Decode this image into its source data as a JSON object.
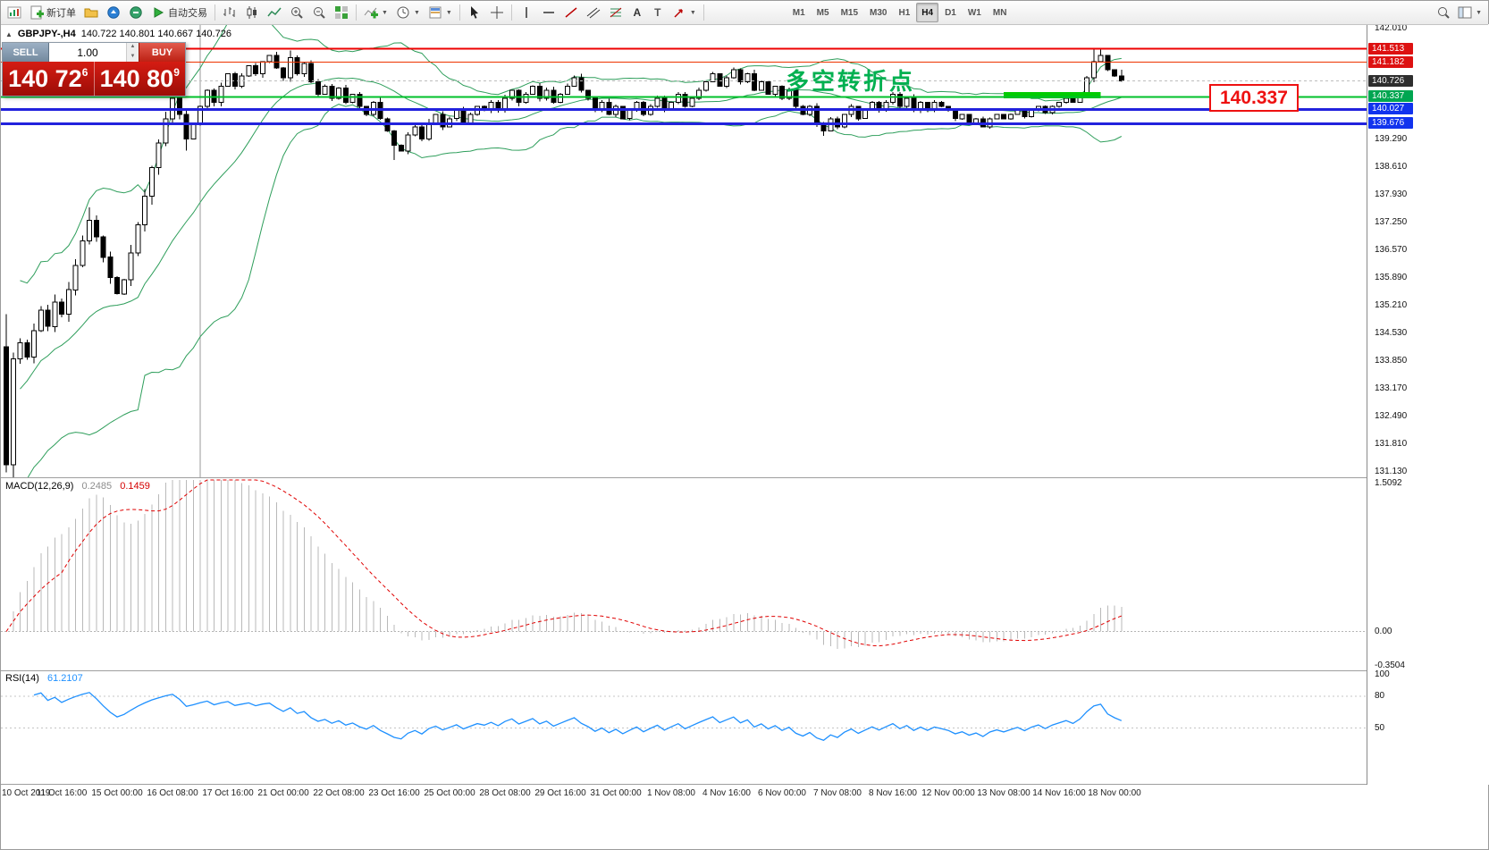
{
  "toolbar": {
    "new_order": "新订单",
    "auto_trade": "自动交易",
    "timeframes": [
      "M1",
      "M5",
      "M15",
      "M30",
      "H1",
      "H4",
      "D1",
      "W1",
      "MN"
    ],
    "active_timeframe": "H4"
  },
  "symbol_header": {
    "symbol": "GBPJPY-,H4",
    "ohlc": "140.722 140.801 140.667 140.726"
  },
  "trade_panel": {
    "sell_label": "SELL",
    "buy_label": "BUY",
    "volume": "1.00",
    "sell_price_main": "140 72",
    "sell_price_sup": "6",
    "buy_price_main": "140 80",
    "buy_price_sup": "9"
  },
  "annotations": {
    "turning_point_text": "多空转折点",
    "price_callout": "140.337"
  },
  "price_scale": {
    "ticks": [
      "142.010",
      "139.290",
      "138.610",
      "137.930",
      "137.250",
      "136.570",
      "135.890",
      "135.210",
      "134.530",
      "133.850",
      "133.170",
      "132.490",
      "131.810",
      "131.130"
    ],
    "labels": [
      {
        "text": "141.513",
        "bg": "#dd1111"
      },
      {
        "text": "141.182",
        "bg": "#dd1111"
      },
      {
        "text": "140.726",
        "bg": "#2e2e2e"
      },
      {
        "text": "140.337",
        "bg": "#00a651"
      },
      {
        "text": "140.027",
        "bg": "#1133ee"
      },
      {
        "text": "139.676",
        "bg": "#1133ee"
      }
    ]
  },
  "macd_panel": {
    "label": "MACD(12,26,9)",
    "value_main": "0.2485",
    "value_signal": "0.1459",
    "scale": [
      {
        "text": "1.5092",
        "value": 1.5092
      },
      {
        "text": "0.00",
        "value": 0
      },
      {
        "text": "-0.3504",
        "value": -0.3504
      }
    ]
  },
  "rsi_panel": {
    "label": "RSI(14)",
    "value": "61.2107",
    "scale": [
      {
        "text": "100",
        "value": 100
      },
      {
        "text": "80",
        "value": 80
      },
      {
        "text": "50",
        "value": 50
      }
    ],
    "levels": [
      80,
      50
    ]
  },
  "time_axis": [
    "10 Oct 2019",
    "11 Oct 16:00",
    "15 Oct 00:00",
    "16 Oct 08:00",
    "17 Oct 16:00",
    "21 Oct 00:00",
    "22 Oct 08:00",
    "23 Oct 16:00",
    "25 Oct 00:00",
    "28 Oct 08:00",
    "29 Oct 16:00",
    "31 Oct 00:00",
    "1 Nov 08:00",
    "4 Nov 16:00",
    "6 Nov 00:00",
    "7 Nov 08:00",
    "8 Nov 16:00",
    "12 Nov 00:00",
    "13 Nov 08:00",
    "14 Nov 16:00",
    "18 Nov 00:00"
  ],
  "chart_data": {
    "type": "candlestick",
    "symbol": "GBPJPY",
    "timeframe": "H4",
    "price": {
      "y_range": [
        131.11,
        142.01
      ],
      "first_open": 134.2,
      "closes": [
        131.3,
        133.9,
        134.3,
        133.95,
        134.6,
        135.1,
        134.7,
        135.3,
        135.0,
        135.6,
        136.2,
        136.8,
        137.3,
        136.9,
        136.4,
        135.9,
        135.5,
        135.85,
        136.5,
        137.2,
        137.9,
        138.6,
        139.2,
        139.8,
        140.3,
        139.9,
        139.3,
        139.65,
        140.1,
        140.5,
        140.2,
        140.6,
        140.9,
        140.6,
        140.85,
        141.1,
        140.9,
        141.2,
        141.35,
        141.05,
        140.8,
        141.3,
        140.9,
        141.15,
        140.7,
        140.4,
        140.6,
        140.3,
        140.55,
        140.2,
        140.4,
        140.1,
        139.9,
        140.2,
        139.8,
        139.5,
        139.15,
        139.0,
        139.4,
        139.6,
        139.3,
        139.7,
        139.9,
        139.6,
        139.8,
        140.0,
        139.7,
        139.9,
        140.1,
        140.0,
        140.2,
        140.0,
        140.3,
        140.5,
        140.2,
        140.4,
        140.6,
        140.3,
        140.5,
        140.2,
        140.4,
        140.6,
        140.8,
        140.5,
        140.3,
        140.0,
        140.2,
        139.9,
        140.1,
        139.8,
        140.0,
        140.2,
        139.9,
        140.1,
        140.3,
        140.0,
        140.2,
        140.4,
        140.1,
        140.3,
        140.5,
        140.7,
        140.9,
        140.6,
        140.8,
        141.0,
        140.7,
        140.9,
        140.5,
        140.7,
        140.4,
        140.6,
        140.3,
        140.5,
        140.1,
        139.9,
        140.1,
        139.7,
        139.5,
        139.8,
        139.6,
        139.9,
        140.1,
        139.8,
        140.0,
        140.2,
        140.0,
        140.2,
        140.4,
        140.1,
        140.3,
        140.0,
        140.2,
        140.0,
        140.2,
        140.1,
        140.0,
        139.8,
        139.9,
        139.7,
        139.8,
        139.6,
        139.8,
        139.9,
        139.8,
        139.9,
        140.0,
        139.85,
        140.0,
        140.1,
        139.95,
        140.1,
        140.2,
        140.3,
        140.2,
        140.4,
        140.8,
        141.2,
        141.35,
        141.0,
        140.85,
        140.726
      ],
      "wick_overrides": {
        "0": {
          "l": 131.12
        },
        "12": {
          "h": 137.62
        },
        "26": {
          "l": 139.02
        },
        "41": {
          "h": 141.47
        },
        "56": {
          "l": 138.78
        },
        "105": {
          "h": 141.06
        },
        "118": {
          "l": 139.38
        },
        "157": {
          "h": 141.5
        },
        "158": {
          "h": 141.51
        },
        "161": {
          "h": 141.0
        }
      }
    },
    "bollinger": {
      "period": 20,
      "deviation": 2,
      "color": "#2e9e5b"
    },
    "horizontal_lines": [
      {
        "price": 141.513,
        "color": "#ee0000",
        "width": 2
      },
      {
        "price": 141.182,
        "color": "#ee3300",
        "width": 1
      },
      {
        "price": 140.337,
        "color": "#00c02a",
        "width": 2
      },
      {
        "price": 140.027,
        "color": "#2222dd",
        "width": 3
      },
      {
        "price": 139.676,
        "color": "#2222dd",
        "width": 3
      }
    ],
    "current_price": 140.726,
    "highlight_rect": {
      "from_bar": 144,
      "to_bar": 158,
      "price_top": 140.45,
      "price_bottom": 140.3,
      "color": "#00cc00"
    },
    "vertical_line_bar": 28,
    "macd": {
      "fast": 12,
      "slow": 26,
      "signal_period": 9,
      "range": [
        -0.3504,
        1.5092
      ],
      "histogram_color": "#b9b9b9",
      "signal_color": "#e00000"
    },
    "rsi": {
      "period": 14,
      "range": [
        0,
        100
      ],
      "color": "#1e90ff"
    }
  }
}
